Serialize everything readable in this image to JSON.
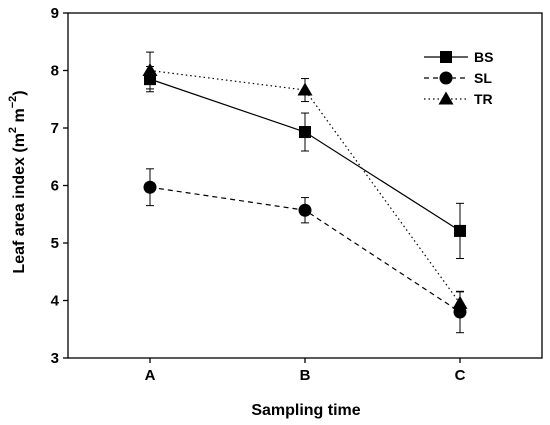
{
  "chart_data": {
    "type": "line",
    "title": "",
    "xlabel": "Sampling time",
    "ylabel_parts": [
      "Leaf area index (m",
      "2",
      " m",
      "−2",
      ")"
    ],
    "categories": [
      "A",
      "B",
      "C"
    ],
    "ylim": [
      3,
      9
    ],
    "yticks": [
      "3",
      "4",
      "5",
      "6",
      "7",
      "8",
      "9"
    ],
    "grid": false,
    "legend_position": "top-right",
    "series": [
      {
        "name": "BS",
        "marker": "square",
        "dash": "solid",
        "values": [
          7.85,
          6.93,
          5.21
        ],
        "errors": [
          0.22,
          0.33,
          0.48
        ]
      },
      {
        "name": "SL",
        "marker": "circle",
        "dash": "dashed",
        "values": [
          5.97,
          5.57,
          3.8
        ],
        "errors": [
          0.32,
          0.22,
          0.36
        ]
      },
      {
        "name": "TR",
        "marker": "triangle",
        "dash": "dotted",
        "values": [
          8.0,
          7.66,
          3.95
        ],
        "errors": [
          0.32,
          0.2,
          0.2
        ]
      }
    ],
    "colors": {
      "line": "#000000",
      "background": "#ffffff"
    }
  }
}
